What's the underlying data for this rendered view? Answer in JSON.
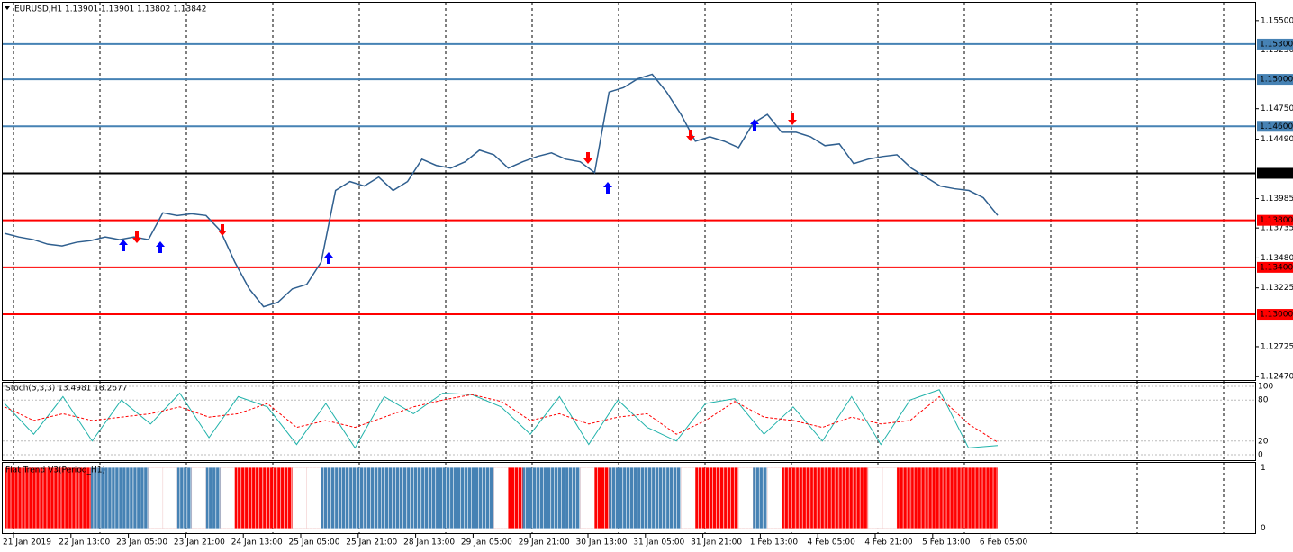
{
  "header": {
    "symbol_info": "EURUSD,H1  1.13901 1.13901 1.13802 1.13842"
  },
  "price_chart": {
    "ylim": [
      1.12441,
      1.15652
    ],
    "yticks": [
      {
        "value": 1.155,
        "label": "1.15500"
      },
      {
        "value": 1.1525,
        "label": "1.15250"
      },
      {
        "value": 1.1475,
        "label": "1.14750"
      },
      {
        "value": 1.1449,
        "label": "1.14490"
      },
      {
        "value": 1.13985,
        "label": "1.13985"
      },
      {
        "value": 1.13735,
        "label": "1.13735"
      },
      {
        "value": 1.1348,
        "label": "1.13480"
      },
      {
        "value": 1.13225,
        "label": "1.13225"
      },
      {
        "value": 1.12725,
        "label": "1.12725"
      },
      {
        "value": 1.1247,
        "label": "1.12470"
      }
    ],
    "levels": [
      {
        "value": 1.153,
        "label": "1.15300",
        "color": "#4682b4"
      },
      {
        "value": 1.15,
        "label": "1.15000",
        "color": "#4682b4"
      },
      {
        "value": 1.146,
        "label": "1.14600",
        "color": "#4682b4"
      },
      {
        "value": 1.142,
        "label": "1.14200",
        "color": "#000000"
      },
      {
        "value": 1.138,
        "label": "1.13800",
        "color": "#ff0000"
      },
      {
        "value": 1.134,
        "label": "1.13400",
        "color": "#ff0000"
      },
      {
        "value": 1.13,
        "label": "1.13000",
        "color": "#ff0000"
      }
    ],
    "close_color": "#2f5f8f",
    "closes": [
      1.13689,
      1.13658,
      1.13636,
      1.13597,
      1.13582,
      1.13613,
      1.13628,
      1.13658,
      1.13636,
      1.13658,
      1.13636,
      1.13864,
      1.13841,
      1.13856,
      1.13841,
      1.13712,
      1.13445,
      1.13217,
      1.13065,
      1.13103,
      1.13217,
      1.13255,
      1.13445,
      1.14054,
      1.1413,
      1.14092,
      1.14168,
      1.14054,
      1.1413,
      1.1432,
      1.14267,
      1.14244,
      1.14298,
      1.14397,
      1.14358,
      1.14244,
      1.14298,
      1.14343,
      1.14374,
      1.1432,
      1.14298,
      1.14206,
      1.14891,
      1.14929,
      1.15005,
      1.15043,
      1.14891,
      1.14701,
      1.14473,
      1.14511,
      1.14473,
      1.14419,
      1.14625,
      1.14701,
      1.14549,
      1.14549,
      1.14511,
      1.14435,
      1.1445,
      1.14282,
      1.1432,
      1.14343,
      1.14358,
      1.14244,
      1.14168,
      1.14092,
      1.14069,
      1.14054,
      1.13993,
      1.13842
    ]
  },
  "stochastic": {
    "label": "Stoch(5,3,3) 13.4981 18.2677",
    "ylim": [
      0,
      100
    ],
    "yticks": [
      0,
      20,
      80,
      100
    ],
    "main_color": "#20b2aa",
    "signal_color": "#ff0000",
    "main": [
      75,
      30,
      85,
      20,
      80,
      45,
      90,
      25,
      85,
      70,
      15,
      75,
      10,
      85,
      60,
      90,
      88,
      70,
      30,
      85,
      15,
      80,
      40,
      20,
      75,
      82,
      30,
      70,
      20,
      85,
      15,
      80,
      95,
      10,
      13.4981
    ],
    "signal": [
      70,
      50,
      60,
      50,
      55,
      60,
      70,
      55,
      60,
      75,
      40,
      50,
      40,
      55,
      70,
      80,
      88,
      78,
      50,
      60,
      45,
      55,
      60,
      30,
      50,
      78,
      55,
      50,
      40,
      55,
      45,
      50,
      85,
      45,
      18.2677
    ]
  },
  "flat_trend": {
    "label": "Flat Trend V3(Period_H1)",
    "ylim": [
      -0.08,
      1.08
    ],
    "yticks": [
      0,
      1
    ],
    "values": [
      1,
      1,
      1,
      1,
      1,
      1,
      1,
      1,
      1,
      1,
      1,
      1,
      1,
      1,
      1,
      1,
      1,
      1,
      1,
      1,
      1,
      1,
      1,
      1,
      1,
      1,
      1,
      1,
      1,
      1,
      1,
      1,
      1,
      1,
      1,
      1,
      1,
      1,
      1,
      1,
      1,
      1,
      1,
      1,
      1,
      1,
      1,
      1,
      1,
      1,
      1,
      1,
      1,
      1,
      1,
      1,
      1,
      1,
      1,
      1,
      1,
      1,
      1,
      1,
      1,
      1,
      1,
      1,
      1
    ],
    "colors": [
      "#ff0000",
      "#ff0000",
      "#ff0000",
      "#ff0000",
      "#ff0000",
      "#ff0000",
      "#4682b4",
      "#4682b4",
      "#4682b4",
      "#4682b4",
      "#ffffff",
      "#ffffff",
      "#4682b4",
      "#ffffff",
      "#4682b4",
      "#ffffff",
      "#ff0000",
      "#ff0000",
      "#ff0000",
      "#ff0000",
      "#ffffff",
      "#ffffff",
      "#4682b4",
      "#4682b4",
      "#4682b4",
      "#4682b4",
      "#4682b4",
      "#4682b4",
      "#4682b4",
      "#4682b4",
      "#4682b4",
      "#4682b4",
      "#4682b4",
      "#4682b4",
      "#ffffff",
      "#ff0000",
      "#4682b4",
      "#4682b4",
      "#4682b4",
      "#4682b4",
      "#ffffff",
      "#ff0000",
      "#4682b4",
      "#4682b4",
      "#4682b4",
      "#4682b4",
      "#4682b4",
      "#ffffff",
      "#ff0000",
      "#ff0000",
      "#ff0000",
      "#ffffff",
      "#4682b4",
      "#ffffff",
      "#ff0000",
      "#ff0000",
      "#ff0000",
      "#ff0000",
      "#ff0000",
      "#ff0000",
      "#ffffff",
      "#ffffff",
      "#ff0000",
      "#ff0000",
      "#ff0000",
      "#ff0000",
      "#ff0000",
      "#ff0000",
      "#ff0000"
    ]
  },
  "time_labels": [
    "21 Jan 2019",
    "22 Jan 13:00",
    "23 Jan 05:00",
    "23 Jan 21:00",
    "24 Jan 13:00",
    "25 Jan 05:00",
    "25 Jan 21:00",
    "28 Jan 13:00",
    "29 Jan 05:00",
    "29 Jan 21:00",
    "30 Jan 13:00",
    "31 Jan 05:00",
    "31 Jan 21:00",
    "1 Feb 13:00",
    "4 Feb 05:00",
    "4 Feb 21:00",
    "5 Feb 13:00",
    "6 Feb 05:00"
  ]
}
